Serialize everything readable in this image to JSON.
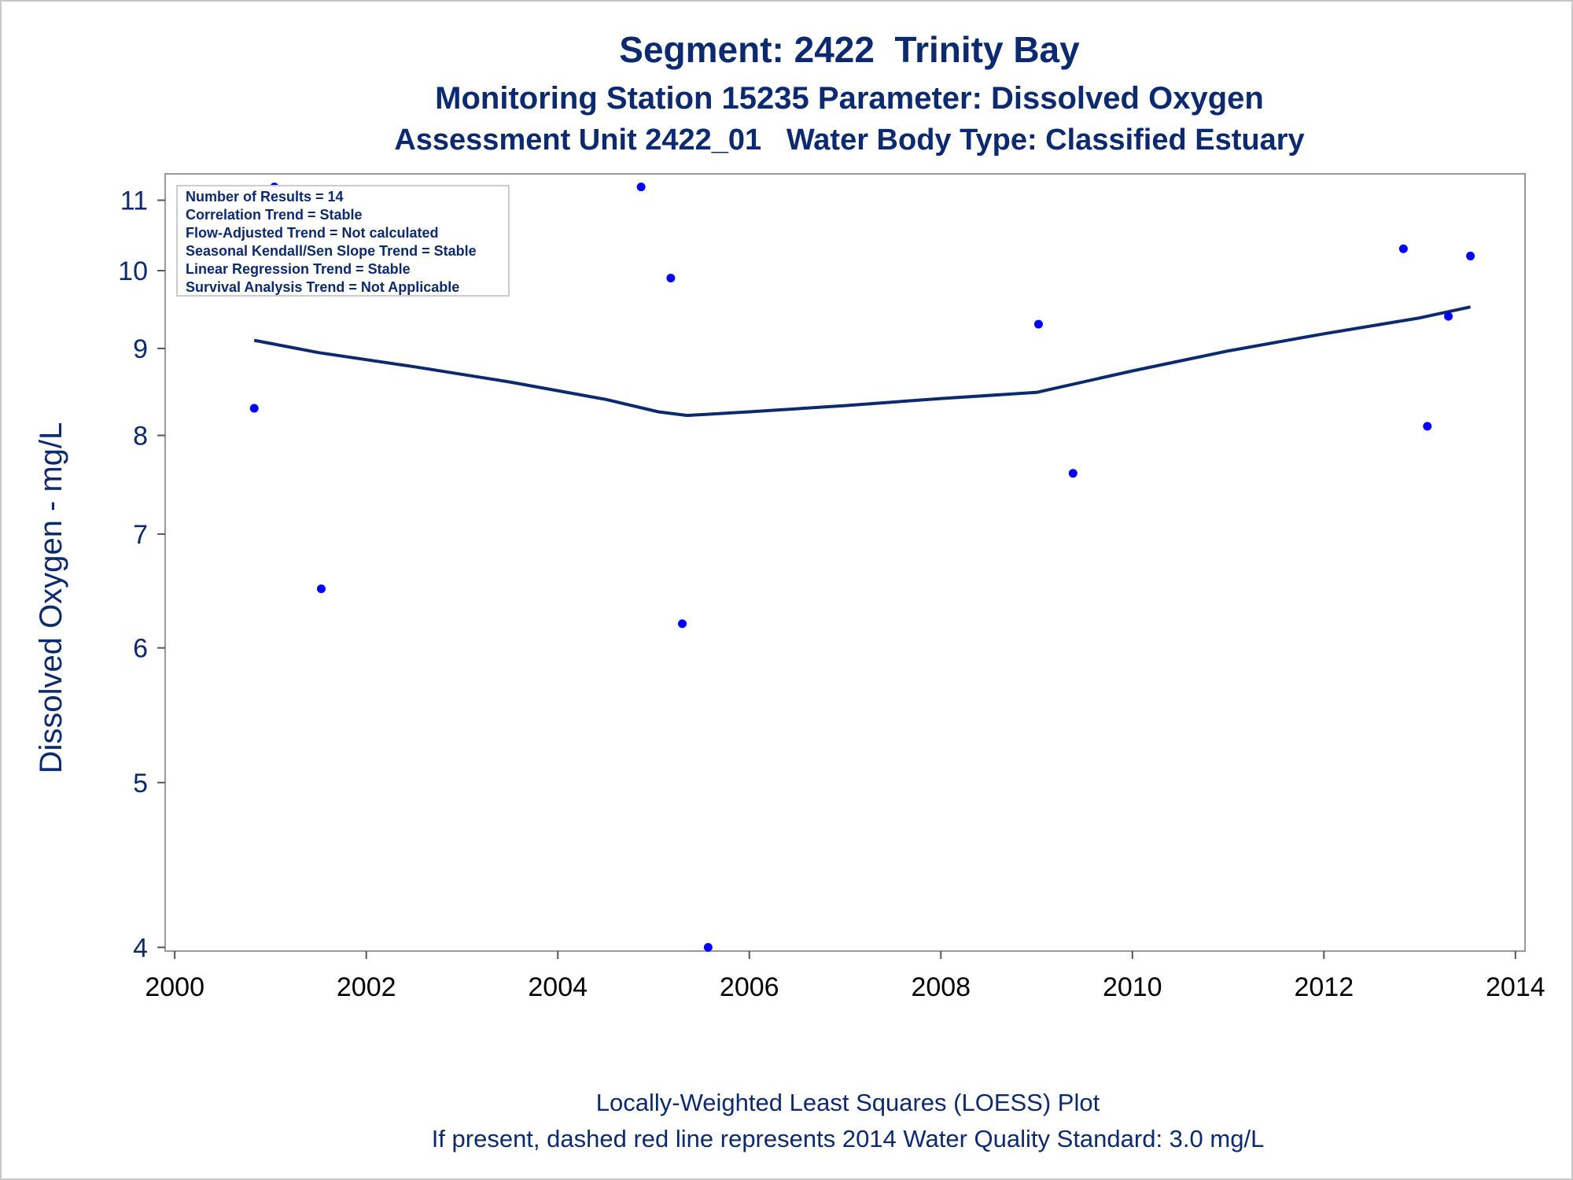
{
  "chart_data": {
    "type": "scatter",
    "title": "Segment: 2422  Trinity Bay",
    "subtitle1": "Monitoring Station 15235 Parameter: Dissolved Oxygen",
    "subtitle2": "Assessment Unit 2422_01   Water Body Type: Classified Estuary",
    "ylabel": "Dissolved Oxygen - mg/L",
    "xlabel": "",
    "yscale": "log",
    "ylim": [
      3.98,
      11.4
    ],
    "xlim": [
      1999.9,
      2014.1
    ],
    "x_ticks": [
      {
        "value": 2000,
        "label": "2000"
      },
      {
        "value": 2002,
        "label": "2002"
      },
      {
        "value": 2004,
        "label": "2004"
      },
      {
        "value": 2006,
        "label": "2006"
      },
      {
        "value": 2008,
        "label": "2008"
      },
      {
        "value": 2010,
        "label": "2010"
      },
      {
        "value": 2012,
        "label": "2012"
      },
      {
        "value": 2014,
        "label": "2014"
      }
    ],
    "y_ticks": [
      {
        "value": 4,
        "label": "4"
      },
      {
        "value": 5,
        "label": "5"
      },
      {
        "value": 6,
        "label": "6"
      },
      {
        "value": 7,
        "label": "7"
      },
      {
        "value": 8,
        "label": "8"
      },
      {
        "value": 9,
        "label": "9"
      },
      {
        "value": 10,
        "label": "10"
      },
      {
        "value": 11,
        "label": "11"
      }
    ],
    "points": [
      {
        "x": 2000.83,
        "y": 8.3
      },
      {
        "x": 2001.04,
        "y": 11.2
      },
      {
        "x": 2001.23,
        "y": 10.2
      },
      {
        "x": 2001.53,
        "y": 6.5
      },
      {
        "x": 2004.87,
        "y": 11.2
      },
      {
        "x": 2005.18,
        "y": 9.9
      },
      {
        "x": 2005.3,
        "y": 6.2
      },
      {
        "x": 2005.57,
        "y": 4.0
      },
      {
        "x": 2009.02,
        "y": 9.3
      },
      {
        "x": 2009.38,
        "y": 7.6
      },
      {
        "x": 2012.83,
        "y": 10.3
      },
      {
        "x": 2013.08,
        "y": 8.1
      },
      {
        "x": 2013.3,
        "y": 9.4
      },
      {
        "x": 2013.53,
        "y": 10.2
      }
    ],
    "loess": [
      {
        "x": 2000.83,
        "y": 9.1
      },
      {
        "x": 2001.5,
        "y": 8.95
      },
      {
        "x": 2002.5,
        "y": 8.78
      },
      {
        "x": 2003.5,
        "y": 8.6
      },
      {
        "x": 2004.5,
        "y": 8.4
      },
      {
        "x": 2005.05,
        "y": 8.26
      },
      {
        "x": 2005.35,
        "y": 8.22
      },
      {
        "x": 2006.0,
        "y": 8.26
      },
      {
        "x": 2007.0,
        "y": 8.33
      },
      {
        "x": 2008.0,
        "y": 8.41
      },
      {
        "x": 2009.0,
        "y": 8.48
      },
      {
        "x": 2010.0,
        "y": 8.73
      },
      {
        "x": 2011.0,
        "y": 8.97
      },
      {
        "x": 2012.0,
        "y": 9.18
      },
      {
        "x": 2013.0,
        "y": 9.38
      },
      {
        "x": 2013.53,
        "y": 9.52
      }
    ],
    "point_color": "#0000ff",
    "line_color": "#0b2a6f",
    "inset_lines": [
      "Number of Results = 14",
      "Correlation Trend = Stable",
      "Flow-Adjusted Trend = Not calculated",
      "Seasonal Kendall/Sen Slope Trend = Stable",
      "Linear Regression Trend = Stable",
      "Survival Analysis Trend = Not Applicable"
    ],
    "inset_placement": "top-left",
    "footnote1": "Locally-Weighted Least Squares (LOESS) Plot",
    "footnote2": "If present, dashed red line represents 2014 Water Quality Standard: 3.0 mg/L"
  }
}
